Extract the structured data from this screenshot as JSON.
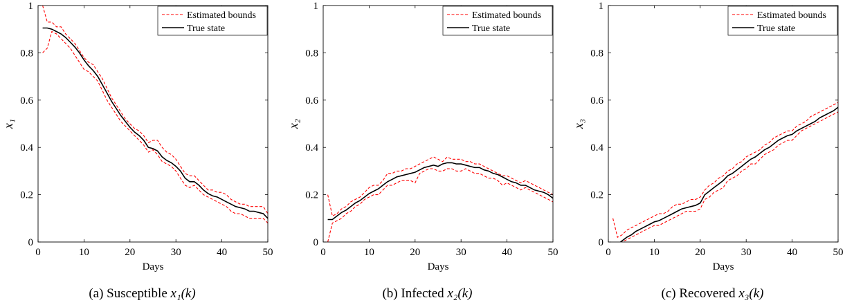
{
  "chart_data": [
    {
      "type": "line",
      "caption": {
        "prefix": "(a)",
        "text": "Susceptible",
        "math": "x₁(k)"
      },
      "xlabel": "Days",
      "ylabel": "x₁",
      "xlim": [
        0,
        50
      ],
      "ylim": [
        0,
        1
      ],
      "xticks": [
        0,
        10,
        20,
        30,
        40,
        50
      ],
      "yticks": [
        0,
        0.2,
        0.4,
        0.6,
        0.8,
        1
      ],
      "legend": {
        "placement": "top-right",
        "entries": [
          "Estimated bounds",
          "True state"
        ]
      },
      "series": [
        {
          "name": "Estimated bounds",
          "style": "dashed",
          "color": "#ff0000",
          "x": [
            1,
            2,
            3,
            4,
            5,
            6,
            7,
            8,
            9,
            10,
            11,
            12,
            13,
            14,
            15,
            16,
            17,
            18,
            19,
            20,
            21,
            22,
            23,
            24,
            25,
            26,
            27,
            28,
            29,
            30,
            31,
            32,
            33,
            34,
            35,
            36,
            37,
            38,
            39,
            40,
            41,
            42,
            43,
            44,
            45,
            46,
            47,
            48,
            49,
            50
          ],
          "y": [
            1.0,
            0.93,
            0.93,
            0.91,
            0.91,
            0.88,
            0.86,
            0.84,
            0.81,
            0.78,
            0.76,
            0.75,
            0.72,
            0.69,
            0.65,
            0.61,
            0.58,
            0.55,
            0.52,
            0.5,
            0.48,
            0.47,
            0.45,
            0.42,
            0.43,
            0.43,
            0.4,
            0.38,
            0.37,
            0.35,
            0.32,
            0.29,
            0.28,
            0.28,
            0.26,
            0.24,
            0.22,
            0.22,
            0.21,
            0.21,
            0.2,
            0.18,
            0.17,
            0.16,
            0.16,
            0.15,
            0.15,
            0.15,
            0.15,
            0.12
          ]
        },
        {
          "name": "",
          "style": "dashed",
          "color": "#ff0000",
          "x": [
            1,
            2,
            3,
            4,
            5,
            6,
            7,
            8,
            9,
            10,
            11,
            12,
            13,
            14,
            15,
            16,
            17,
            18,
            19,
            20,
            21,
            22,
            23,
            24,
            25,
            26,
            27,
            28,
            29,
            30,
            31,
            32,
            33,
            34,
            35,
            36,
            37,
            38,
            39,
            40,
            41,
            42,
            43,
            44,
            45,
            46,
            47,
            48,
            49,
            50
          ],
          "y": [
            0.8,
            0.82,
            0.89,
            0.88,
            0.86,
            0.84,
            0.82,
            0.79,
            0.76,
            0.73,
            0.72,
            0.7,
            0.68,
            0.64,
            0.6,
            0.57,
            0.54,
            0.51,
            0.49,
            0.47,
            0.45,
            0.43,
            0.41,
            0.38,
            0.39,
            0.37,
            0.34,
            0.33,
            0.32,
            0.3,
            0.27,
            0.24,
            0.23,
            0.24,
            0.22,
            0.2,
            0.19,
            0.18,
            0.17,
            0.16,
            0.15,
            0.13,
            0.12,
            0.12,
            0.11,
            0.1,
            0.1,
            0.1,
            0.1,
            0.08
          ]
        },
        {
          "name": "True state",
          "style": "solid",
          "color": "#000000",
          "x": [
            1,
            2,
            3,
            4,
            5,
            6,
            7,
            8,
            9,
            10,
            11,
            12,
            13,
            14,
            15,
            16,
            17,
            18,
            19,
            20,
            21,
            22,
            23,
            24,
            25,
            26,
            27,
            28,
            29,
            30,
            31,
            32,
            33,
            34,
            35,
            36,
            37,
            38,
            39,
            40,
            41,
            42,
            43,
            44,
            45,
            46,
            47,
            48,
            49,
            50
          ],
          "y": [
            0.905,
            0.905,
            0.9,
            0.89,
            0.88,
            0.865,
            0.845,
            0.825,
            0.8,
            0.77,
            0.745,
            0.725,
            0.7,
            0.665,
            0.63,
            0.595,
            0.565,
            0.535,
            0.51,
            0.485,
            0.465,
            0.45,
            0.43,
            0.4,
            0.395,
            0.385,
            0.36,
            0.345,
            0.335,
            0.32,
            0.3,
            0.27,
            0.255,
            0.255,
            0.24,
            0.22,
            0.205,
            0.195,
            0.19,
            0.18,
            0.17,
            0.16,
            0.15,
            0.145,
            0.14,
            0.13,
            0.13,
            0.125,
            0.12,
            0.1
          ]
        }
      ]
    },
    {
      "type": "line",
      "caption": {
        "prefix": "(b)",
        "text": "Infected",
        "math": "x₂(k)"
      },
      "xlabel": "Days",
      "ylabel": "x₂",
      "xlim": [
        0,
        50
      ],
      "ylim": [
        0,
        1
      ],
      "xticks": [
        0,
        10,
        20,
        30,
        40,
        50
      ],
      "yticks": [
        0,
        0.2,
        0.4,
        0.6,
        0.8,
        1
      ],
      "legend": {
        "placement": "top-right",
        "entries": [
          "Estimated bounds",
          "True state"
        ]
      },
      "series": [
        {
          "name": "Estimated bounds",
          "style": "dashed",
          "color": "#ff0000",
          "x": [
            1,
            2,
            3,
            4,
            5,
            6,
            7,
            8,
            9,
            10,
            11,
            12,
            13,
            14,
            15,
            16,
            17,
            18,
            19,
            20,
            21,
            22,
            23,
            24,
            25,
            26,
            27,
            28,
            29,
            30,
            31,
            32,
            33,
            34,
            35,
            36,
            37,
            38,
            39,
            40,
            41,
            42,
            43,
            44,
            45,
            46,
            47,
            48,
            49,
            50
          ],
          "y": [
            0.2,
            0.11,
            0.12,
            0.14,
            0.15,
            0.17,
            0.18,
            0.19,
            0.21,
            0.23,
            0.24,
            0.24,
            0.26,
            0.29,
            0.29,
            0.3,
            0.3,
            0.31,
            0.31,
            0.32,
            0.33,
            0.34,
            0.35,
            0.36,
            0.35,
            0.34,
            0.36,
            0.35,
            0.35,
            0.35,
            0.34,
            0.34,
            0.33,
            0.33,
            0.32,
            0.31,
            0.3,
            0.29,
            0.28,
            0.28,
            0.27,
            0.26,
            0.25,
            0.26,
            0.25,
            0.24,
            0.23,
            0.22,
            0.21,
            0.2
          ]
        },
        {
          "name": "",
          "style": "dashed",
          "color": "#ff0000",
          "x": [
            1,
            2,
            3,
            4,
            5,
            6,
            7,
            8,
            9,
            10,
            11,
            12,
            13,
            14,
            15,
            16,
            17,
            18,
            19,
            20,
            21,
            22,
            23,
            24,
            25,
            26,
            27,
            28,
            29,
            30,
            31,
            32,
            33,
            34,
            35,
            36,
            37,
            38,
            39,
            40,
            41,
            42,
            43,
            44,
            45,
            46,
            47,
            48,
            49,
            50
          ],
          "y": [
            0.0,
            0.08,
            0.09,
            0.1,
            0.12,
            0.13,
            0.15,
            0.16,
            0.18,
            0.19,
            0.2,
            0.2,
            0.22,
            0.24,
            0.24,
            0.25,
            0.26,
            0.26,
            0.26,
            0.25,
            0.29,
            0.3,
            0.31,
            0.31,
            0.3,
            0.3,
            0.31,
            0.31,
            0.3,
            0.3,
            0.31,
            0.3,
            0.29,
            0.29,
            0.28,
            0.27,
            0.27,
            0.26,
            0.24,
            0.25,
            0.24,
            0.23,
            0.22,
            0.23,
            0.22,
            0.21,
            0.2,
            0.19,
            0.18,
            0.17
          ]
        },
        {
          "name": "True state",
          "style": "solid",
          "color": "#000000",
          "x": [
            1,
            2,
            3,
            4,
            5,
            6,
            7,
            8,
            9,
            10,
            11,
            12,
            13,
            14,
            15,
            16,
            17,
            18,
            19,
            20,
            21,
            22,
            23,
            24,
            25,
            26,
            27,
            28,
            29,
            30,
            31,
            32,
            33,
            34,
            35,
            36,
            37,
            38,
            39,
            40,
            41,
            42,
            43,
            44,
            45,
            46,
            47,
            48,
            49,
            50
          ],
          "y": [
            0.095,
            0.095,
            0.11,
            0.125,
            0.135,
            0.15,
            0.165,
            0.175,
            0.19,
            0.205,
            0.215,
            0.225,
            0.24,
            0.255,
            0.265,
            0.275,
            0.28,
            0.285,
            0.29,
            0.295,
            0.305,
            0.315,
            0.32,
            0.325,
            0.32,
            0.33,
            0.335,
            0.335,
            0.33,
            0.33,
            0.325,
            0.32,
            0.315,
            0.315,
            0.305,
            0.3,
            0.29,
            0.285,
            0.275,
            0.265,
            0.255,
            0.25,
            0.24,
            0.24,
            0.23,
            0.22,
            0.215,
            0.21,
            0.2,
            0.185
          ]
        }
      ]
    },
    {
      "type": "line",
      "caption": {
        "prefix": "(c)",
        "text": "Recovered",
        "math": "x₃(k)"
      },
      "xlabel": "Days",
      "ylabel": "x₃",
      "xlim": [
        0,
        50
      ],
      "ylim": [
        0,
        1
      ],
      "xticks": [
        0,
        10,
        20,
        30,
        40,
        50
      ],
      "yticks": [
        0,
        0.2,
        0.4,
        0.6,
        0.8,
        1
      ],
      "legend": {
        "placement": "top-right",
        "entries": [
          "Estimated bounds",
          "True state"
        ]
      },
      "series": [
        {
          "name": "Estimated bounds",
          "style": "dashed",
          "color": "#ff0000",
          "x": [
            1,
            2,
            3,
            4,
            5,
            6,
            7,
            8,
            9,
            10,
            11,
            12,
            13,
            14,
            15,
            16,
            17,
            18,
            19,
            20,
            21,
            22,
            23,
            24,
            25,
            26,
            27,
            28,
            29,
            30,
            31,
            32,
            33,
            34,
            35,
            36,
            37,
            38,
            39,
            40,
            41,
            42,
            43,
            44,
            45,
            46,
            47,
            48,
            49,
            50
          ],
          "y": [
            0.1,
            0.02,
            0.03,
            0.05,
            0.06,
            0.07,
            0.08,
            0.09,
            0.1,
            0.11,
            0.12,
            0.12,
            0.13,
            0.15,
            0.16,
            0.16,
            0.17,
            0.18,
            0.18,
            0.19,
            0.22,
            0.24,
            0.25,
            0.27,
            0.28,
            0.3,
            0.31,
            0.33,
            0.34,
            0.36,
            0.37,
            0.38,
            0.39,
            0.41,
            0.42,
            0.44,
            0.45,
            0.46,
            0.47,
            0.47,
            0.49,
            0.5,
            0.51,
            0.53,
            0.54,
            0.55,
            0.56,
            0.57,
            0.58,
            0.59
          ]
        },
        {
          "name": "",
          "style": "dashed",
          "color": "#ff0000",
          "x": [
            1,
            2,
            3,
            4,
            5,
            6,
            7,
            8,
            9,
            10,
            11,
            12,
            13,
            14,
            15,
            16,
            17,
            18,
            19,
            20,
            21,
            22,
            23,
            24,
            25,
            26,
            27,
            28,
            29,
            30,
            31,
            32,
            33,
            34,
            35,
            36,
            37,
            38,
            39,
            40,
            41,
            42,
            43,
            44,
            45,
            46,
            47,
            48,
            49,
            50
          ],
          "y": [
            -0.02,
            -0.02,
            0.0,
            0.01,
            0.02,
            0.03,
            0.04,
            0.05,
            0.06,
            0.07,
            0.07,
            0.08,
            0.09,
            0.1,
            0.11,
            0.12,
            0.13,
            0.13,
            0.13,
            0.14,
            0.18,
            0.19,
            0.21,
            0.22,
            0.23,
            0.26,
            0.27,
            0.28,
            0.3,
            0.31,
            0.33,
            0.33,
            0.35,
            0.37,
            0.38,
            0.39,
            0.41,
            0.42,
            0.43,
            0.43,
            0.45,
            0.47,
            0.48,
            0.49,
            0.5,
            0.51,
            0.52,
            0.53,
            0.54,
            0.55
          ]
        },
        {
          "name": "True state",
          "style": "solid",
          "color": "#000000",
          "x": [
            1,
            2,
            3,
            4,
            5,
            6,
            7,
            8,
            9,
            10,
            11,
            12,
            13,
            14,
            15,
            16,
            17,
            18,
            19,
            20,
            21,
            22,
            23,
            24,
            25,
            26,
            27,
            28,
            29,
            30,
            31,
            32,
            33,
            34,
            35,
            36,
            37,
            38,
            39,
            40,
            41,
            42,
            43,
            44,
            45,
            46,
            47,
            48,
            49,
            50
          ],
          "y": [
            -0.01,
            -0.01,
            0.005,
            0.02,
            0.03,
            0.045,
            0.055,
            0.065,
            0.075,
            0.085,
            0.09,
            0.1,
            0.11,
            0.12,
            0.13,
            0.14,
            0.145,
            0.15,
            0.155,
            0.165,
            0.2,
            0.215,
            0.23,
            0.245,
            0.26,
            0.28,
            0.29,
            0.305,
            0.32,
            0.335,
            0.35,
            0.36,
            0.375,
            0.39,
            0.4,
            0.415,
            0.43,
            0.44,
            0.45,
            0.455,
            0.47,
            0.48,
            0.49,
            0.5,
            0.51,
            0.525,
            0.535,
            0.545,
            0.555,
            0.57
          ]
        }
      ]
    }
  ]
}
